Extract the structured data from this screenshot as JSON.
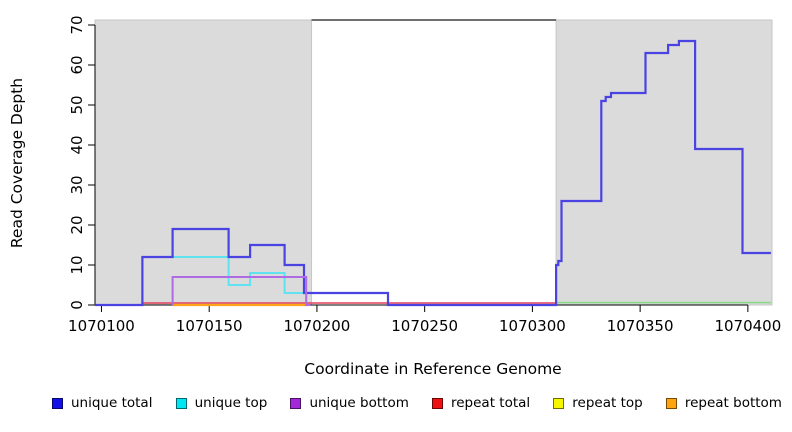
{
  "chart_data": {
    "type": "line",
    "style": "step-coverage-plot",
    "title": "",
    "xlabel": "Coordinate in Reference Genome",
    "ylabel": "Read Coverage Depth",
    "xlim": [
      1070097,
      1070411.2
    ],
    "ylim": [
      0,
      71.25
    ],
    "grid": false,
    "x_ticks": [
      1070100,
      1070150,
      1070200,
      1070250,
      1070300,
      1070350,
      1070400
    ],
    "x_tick_labels": [
      "1070100",
      "1070150",
      "1070200",
      "1070250",
      "1070300",
      "1070350",
      "1070400"
    ],
    "y_ticks": [
      0,
      10,
      20,
      30,
      40,
      50,
      60,
      70
    ],
    "y_tick_labels": [
      "0",
      "10",
      "20",
      "30",
      "40",
      "50",
      "60",
      "70"
    ],
    "shaded_regions": [
      {
        "name": "left-gray-region",
        "x0": 1070097,
        "x1": 1070197.5,
        "fill": "#dbdbdb",
        "edge": "#c6c6c6"
      },
      {
        "name": "right-gray-region",
        "x0": 1070311,
        "x1": 1070411.2,
        "fill": "#dbdbdb",
        "edge": "#c6c6c6"
      }
    ],
    "top_boundary_line": {
      "x0": 1070197.5,
      "x1": 1070311,
      "y": 71.25,
      "color": "#6f6f6f",
      "width": 2
    },
    "series": [
      {
        "name": "repeat total",
        "color": "#e2405a",
        "width": 1.6,
        "points": [
          [
            1070119,
            0.5
          ],
          [
            1070311,
            0.5
          ]
        ]
      },
      {
        "name": "repeat bottom",
        "color": "#ffa318",
        "width": 2.2,
        "points": [
          [
            1070133,
            0
          ],
          [
            1070196,
            0
          ]
        ]
      },
      {
        "name": "baseline green (unlabeled)",
        "color": "#8ed88e",
        "width": 1.6,
        "points": [
          [
            1070311,
            0.6
          ],
          [
            1070410.7,
            0.6
          ]
        ]
      },
      {
        "name": "unique top",
        "color": "#5fe2f0",
        "width": 2,
        "points": [
          [
            1070097,
            0
          ],
          [
            1070119,
            0
          ],
          [
            1070119,
            12
          ],
          [
            1070159,
            12
          ],
          [
            1070159,
            5
          ],
          [
            1070169,
            5
          ],
          [
            1070169,
            8
          ],
          [
            1070185,
            8
          ],
          [
            1070185,
            3
          ],
          [
            1070233,
            3
          ],
          [
            1070233,
            0
          ],
          [
            1070311,
            0
          ]
        ]
      },
      {
        "name": "unique total",
        "color": "#4a43e2",
        "width": 2.2,
        "points": [
          [
            1070097,
            0
          ],
          [
            1070119,
            0
          ],
          [
            1070119,
            12
          ],
          [
            1070133,
            12
          ],
          [
            1070133,
            19
          ],
          [
            1070159,
            19
          ],
          [
            1070159,
            12
          ],
          [
            1070169,
            12
          ],
          [
            1070169,
            15
          ],
          [
            1070185,
            15
          ],
          [
            1070185,
            10
          ],
          [
            1070194,
            10
          ],
          [
            1070194,
            3
          ],
          [
            1070233,
            3
          ],
          [
            1070233,
            0
          ],
          [
            1070311,
            0
          ],
          [
            1070311,
            10
          ],
          [
            1070312,
            10
          ],
          [
            1070312,
            11
          ],
          [
            1070313.5,
            11
          ],
          [
            1070313.5,
            26
          ],
          [
            1070332,
            26
          ],
          [
            1070332,
            51
          ],
          [
            1070334,
            51
          ],
          [
            1070334,
            52
          ],
          [
            1070336.5,
            52
          ],
          [
            1070336.5,
            53
          ],
          [
            1070352.5,
            53
          ],
          [
            1070352.5,
            63
          ],
          [
            1070363,
            63
          ],
          [
            1070363,
            65
          ],
          [
            1070368,
            65
          ],
          [
            1070368,
            66
          ],
          [
            1070375.5,
            66
          ],
          [
            1070375.5,
            39
          ],
          [
            1070397.5,
            39
          ],
          [
            1070397.5,
            13
          ],
          [
            1070410.7,
            13
          ]
        ]
      },
      {
        "name": "unique bottom",
        "color": "#b06ae4",
        "width": 2,
        "points": [
          [
            1070133,
            0
          ],
          [
            1070133,
            7
          ],
          [
            1070195,
            7
          ],
          [
            1070195,
            0
          ],
          [
            1070197,
            0
          ]
        ]
      }
    ],
    "legend": [
      {
        "label": "unique total",
        "color": "#1212e8"
      },
      {
        "label": "unique top",
        "color": "#00e6f2"
      },
      {
        "label": "unique bottom",
        "color": "#a228da"
      },
      {
        "label": "repeat total",
        "color": "#ee1111"
      },
      {
        "label": "repeat top",
        "color": "#f6f600"
      },
      {
        "label": "repeat bottom",
        "color": "#ffa40c"
      }
    ],
    "legend_position": "bottom"
  }
}
